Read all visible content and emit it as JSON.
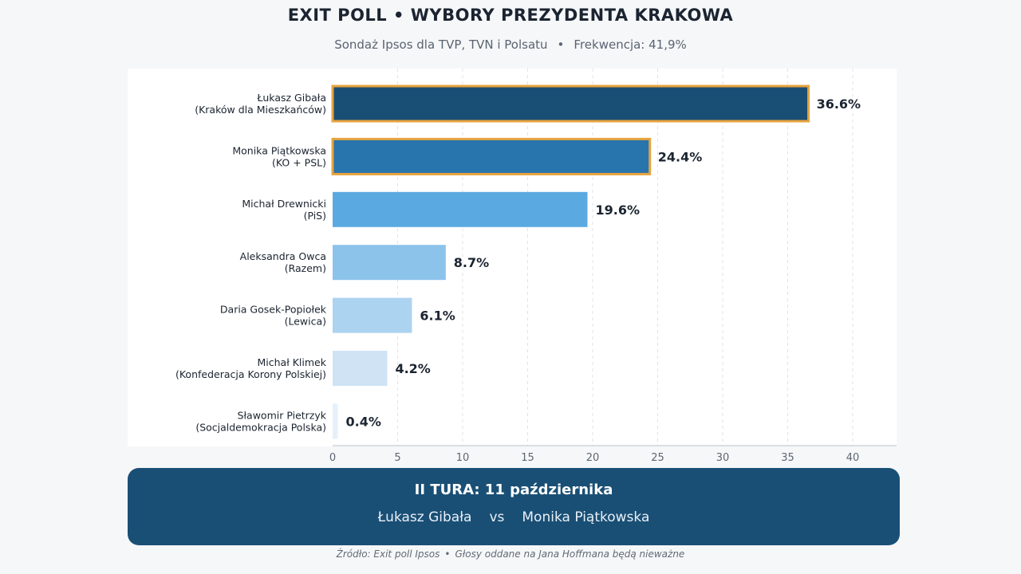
{
  "header": {
    "title": "EXIT POLL  •  WYBORY PREZYDENTA KRAKOWA",
    "subtitle_source": "Sondaż Ipsos dla TVP, TVN i Polsatu",
    "subtitle_sep": "•",
    "subtitle_turnout": "Frekwencja: 41,9%"
  },
  "chart_data": {
    "type": "bar",
    "orientation": "horizontal",
    "categories": [
      [
        "Łukasz Gibała",
        "(Kraków dla Mieszkańców)"
      ],
      [
        "Monika Piątkowska",
        "(KO + PSL)"
      ],
      [
        "Michał Drewnicki",
        "(PiS)"
      ],
      [
        "Aleksandra Owca",
        "(Razem)"
      ],
      [
        "Daria Gosek-Popiołek",
        "(Lewica)"
      ],
      [
        "Michał Klimek",
        "(Konfederacja Korony Polskiej)"
      ],
      [
        "Sławomir Pietrzyk",
        "(Socjaldemokracja Polska)"
      ]
    ],
    "values": [
      36.6,
      24.4,
      19.6,
      8.7,
      6.1,
      4.2,
      0.4
    ],
    "value_labels": [
      "36.6%",
      "24.4%",
      "19.6%",
      "8.7%",
      "6.1%",
      "4.2%",
      "0.4%"
    ],
    "colors": [
      "#1a4f75",
      "#2874ad",
      "#5aa9e1",
      "#8cc3eb",
      "#acd3f0",
      "#cfe3f4",
      "#e6f0fa"
    ],
    "highlight_color": "#e8a33d",
    "highlighted": [
      true,
      true,
      false,
      false,
      false,
      false,
      false
    ],
    "xlim": [
      0,
      43
    ],
    "xticks": [
      0,
      5,
      10,
      15,
      20,
      25,
      30,
      35,
      40
    ],
    "grid": "vertical dashed",
    "xlabel": "",
    "ylabel": ""
  },
  "runoff": {
    "title": "II TURA: 11 października",
    "candidate_a": "Łukasz Gibała",
    "vs": "vs",
    "candidate_b": "Monika Piątkowska"
  },
  "footer": {
    "source": "Źródło: Exit poll Ipsos",
    "sep": "•",
    "note": "Głosy oddane na Jana Hoffmana będą nieważne"
  }
}
